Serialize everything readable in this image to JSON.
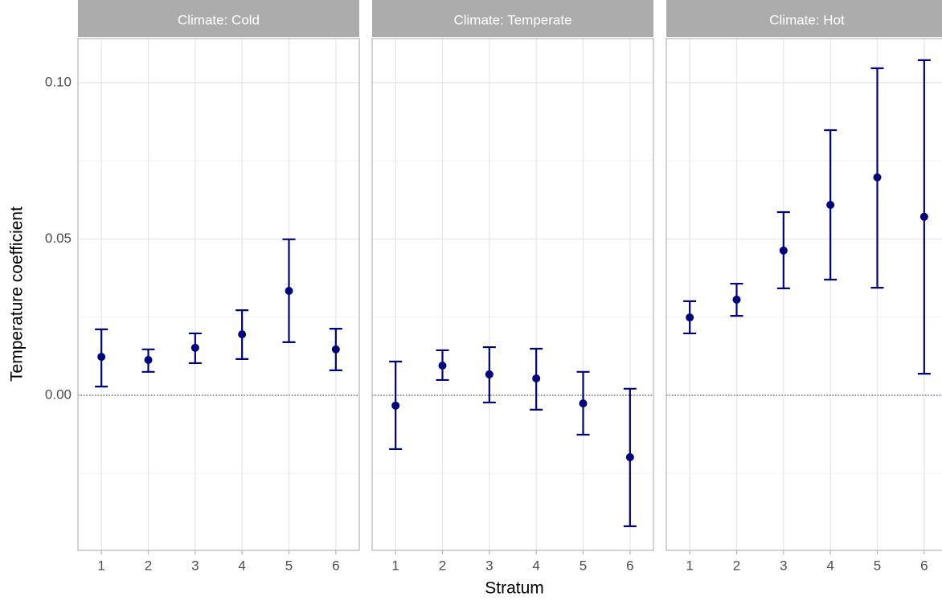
{
  "chart_data": {
    "type": "errorbar",
    "xlabel": "Stratum",
    "ylabel": "Temperature coefficient",
    "ylim": [
      -0.0496,
      0.1141
    ],
    "yticks": [
      {
        "value": 0,
        "label": "0.00"
      },
      {
        "value": 0.05,
        "label": "0.05"
      },
      {
        "value": 0.1,
        "label": "0.10"
      }
    ],
    "minor_yticks": [
      -0.025,
      0.025,
      0.075
    ],
    "grid": true,
    "hline": 0,
    "color": "#00007f",
    "facets": [
      {
        "title": "Climate: Cold",
        "categories": [
          "1",
          "2",
          "3",
          "4",
          "5",
          "6"
        ],
        "values": [
          0.0123,
          0.0113,
          0.0152,
          0.0195,
          0.0334,
          0.0147
        ],
        "lower": [
          0.0028,
          0.0075,
          0.0103,
          0.0116,
          0.017,
          0.008
        ],
        "upper": [
          0.0211,
          0.0147,
          0.0198,
          0.0272,
          0.0499,
          0.0213
        ]
      },
      {
        "title": "Climate: Temperate",
        "categories": [
          "1",
          "2",
          "3",
          "4",
          "5",
          "6"
        ],
        "values": [
          -0.0033,
          0.0095,
          0.0067,
          0.0054,
          -0.0026,
          -0.0198
        ],
        "lower": [
          -0.0172,
          0.0049,
          -0.0023,
          -0.0046,
          -0.0126,
          -0.0419
        ],
        "upper": [
          0.0108,
          0.0144,
          0.0154,
          0.0149,
          0.0075,
          0.0021
        ]
      },
      {
        "title": "Climate: Hot",
        "categories": [
          "1",
          "2",
          "3",
          "4",
          "5",
          "6"
        ],
        "values": [
          0.0249,
          0.0306,
          0.0463,
          0.0609,
          0.0697,
          0.0571
        ],
        "lower": [
          0.0198,
          0.0254,
          0.0342,
          0.037,
          0.0344,
          0.0069
        ],
        "upper": [
          0.0301,
          0.0357,
          0.0586,
          0.0848,
          0.1046,
          0.1072
        ]
      }
    ]
  }
}
